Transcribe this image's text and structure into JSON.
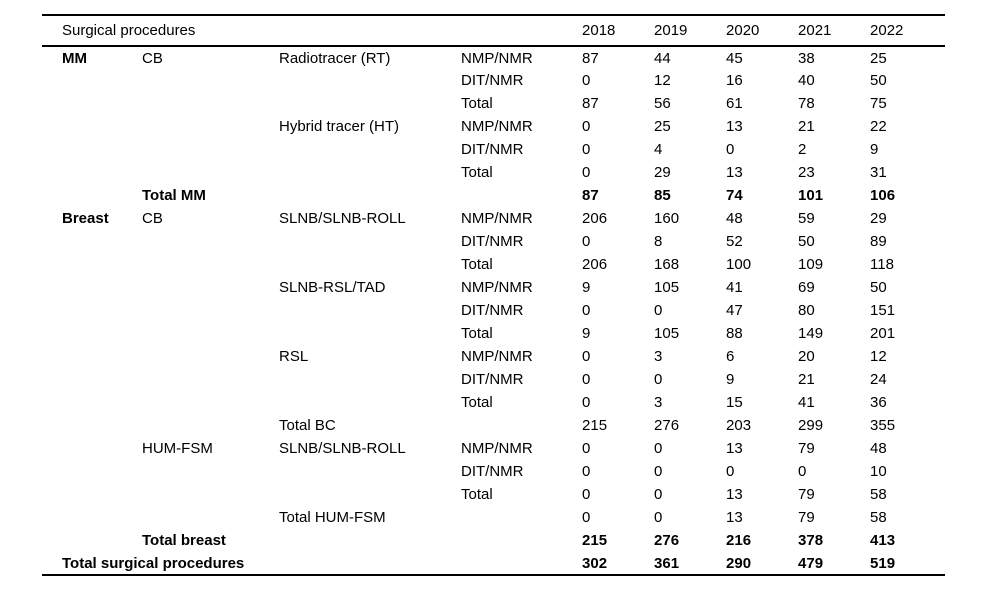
{
  "table": {
    "header": {
      "label": "Surgical procedures",
      "years": [
        "2018",
        "2019",
        "2020",
        "2021",
        "2022"
      ]
    },
    "rows": [
      {
        "labels": [
          "MM",
          "CB",
          "Radiotracer (RT)",
          "NMP/NMR"
        ],
        "values": [
          87,
          44,
          45,
          38,
          25
        ],
        "bold": false
      },
      {
        "labels": [
          "",
          "",
          "",
          "DIT/NMR"
        ],
        "values": [
          0,
          12,
          16,
          40,
          50
        ],
        "bold": false
      },
      {
        "labels": [
          "",
          "",
          "",
          "Total"
        ],
        "values": [
          87,
          56,
          61,
          78,
          75
        ],
        "bold": false
      },
      {
        "labels": [
          "",
          "",
          "Hybrid tracer (HT)",
          "NMP/NMR"
        ],
        "values": [
          0,
          25,
          13,
          21,
          22
        ],
        "bold": false
      },
      {
        "labels": [
          "",
          "",
          "",
          "DIT/NMR"
        ],
        "values": [
          0,
          4,
          0,
          2,
          9
        ],
        "bold": false
      },
      {
        "labels": [
          "",
          "",
          "",
          "Total"
        ],
        "values": [
          0,
          29,
          13,
          23,
          31
        ],
        "bold": false
      },
      {
        "labels": [
          "",
          "Total MM",
          "",
          ""
        ],
        "values": [
          87,
          85,
          74,
          101,
          106
        ],
        "bold": true
      },
      {
        "labels": [
          "Breast",
          "CB",
          "SLNB/SLNB-ROLL",
          "NMP/NMR"
        ],
        "values": [
          206,
          160,
          48,
          59,
          29
        ],
        "bold": false
      },
      {
        "labels": [
          "",
          "",
          "",
          "DIT/NMR"
        ],
        "values": [
          0,
          8,
          52,
          50,
          89
        ],
        "bold": false
      },
      {
        "labels": [
          "",
          "",
          "",
          "Total"
        ],
        "values": [
          206,
          168,
          100,
          109,
          118
        ],
        "bold": false
      },
      {
        "labels": [
          "",
          "",
          "SLNB-RSL/TAD",
          "NMP/NMR"
        ],
        "values": [
          9,
          105,
          41,
          69,
          50
        ],
        "bold": false
      },
      {
        "labels": [
          "",
          "",
          "",
          "DIT/NMR"
        ],
        "values": [
          0,
          0,
          47,
          80,
          151
        ],
        "bold": false
      },
      {
        "labels": [
          "",
          "",
          "",
          "Total"
        ],
        "values": [
          9,
          105,
          88,
          149,
          201
        ],
        "bold": false
      },
      {
        "labels": [
          "",
          "",
          "RSL",
          "NMP/NMR"
        ],
        "values": [
          0,
          3,
          6,
          20,
          12
        ],
        "bold": false
      },
      {
        "labels": [
          "",
          "",
          "",
          "DIT/NMR"
        ],
        "values": [
          0,
          0,
          9,
          21,
          24
        ],
        "bold": false
      },
      {
        "labels": [
          "",
          "",
          "",
          "Total"
        ],
        "values": [
          0,
          3,
          15,
          41,
          36
        ],
        "bold": false
      },
      {
        "labels": [
          "",
          "",
          "Total BC",
          ""
        ],
        "values": [
          215,
          276,
          203,
          299,
          355
        ],
        "bold": false
      },
      {
        "labels": [
          "",
          "HUM-FSM",
          "SLNB/SLNB-ROLL",
          "NMP/NMR"
        ],
        "values": [
          0,
          0,
          13,
          79,
          48
        ],
        "bold": false
      },
      {
        "labels": [
          "",
          "",
          "",
          "DIT/NMR"
        ],
        "values": [
          0,
          0,
          0,
          0,
          10
        ],
        "bold": false
      },
      {
        "labels": [
          "",
          "",
          "",
          "Total"
        ],
        "values": [
          0,
          0,
          13,
          79,
          58
        ],
        "bold": false
      },
      {
        "labels": [
          "",
          "",
          "Total HUM-FSM",
          ""
        ],
        "values": [
          0,
          0,
          13,
          79,
          58
        ],
        "bold": false
      },
      {
        "labels": [
          "",
          "Total breast",
          "",
          ""
        ],
        "values": [
          215,
          276,
          216,
          378,
          413
        ],
        "bold": true
      },
      {
        "labels": [
          "Total surgical procedures",
          "",
          "",
          ""
        ],
        "values": [
          302,
          361,
          290,
          479,
          519
        ],
        "bold": true
      }
    ],
    "colors": {
      "text": "#000000",
      "background": "#ffffff",
      "rule": "#000000"
    }
  }
}
